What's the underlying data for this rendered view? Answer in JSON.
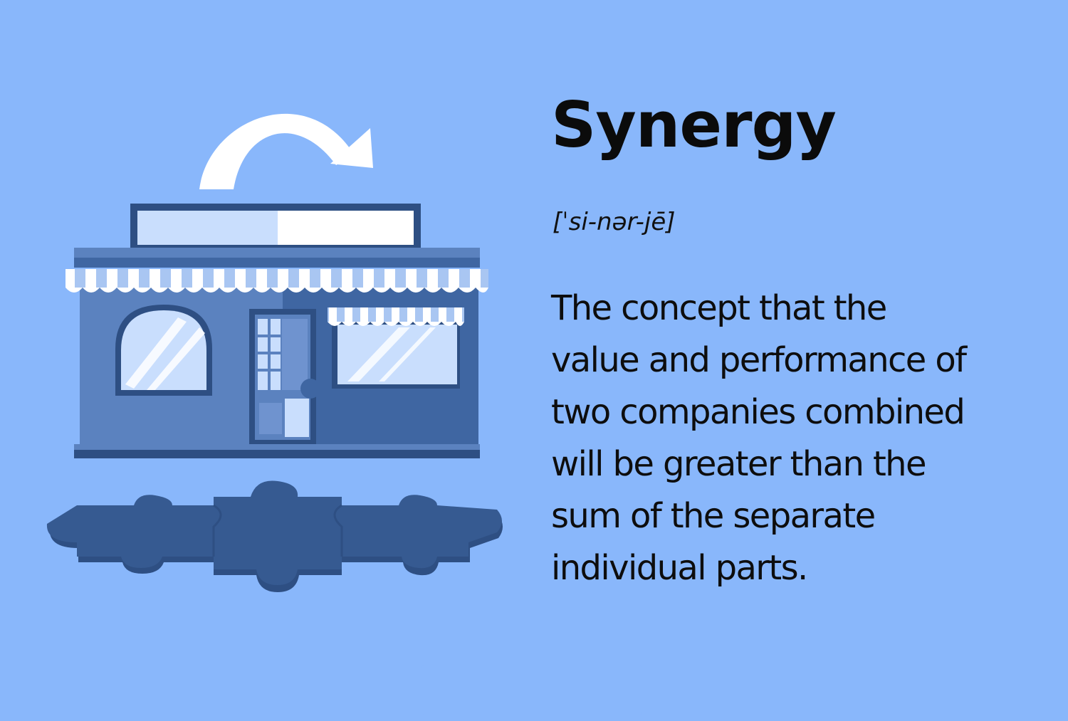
{
  "colors": {
    "background": "#89b7fb",
    "store_dark": "#2e4f83",
    "store_mid": "#3f66a2",
    "store_light": "#5b82bf",
    "glass": "#c9defd",
    "white": "#ffffff",
    "puzzle": "#365a91",
    "text": "#0b0b0b"
  },
  "icons": {
    "arrow": "curved-arrow-icon",
    "store": "storefront-icon",
    "puzzle": "puzzle-pieces-icon"
  },
  "term": "Synergy",
  "pronunciation": "[ˈsi-nər-jē]",
  "definition_lines": [
    "The concept that the",
    "value and performance of",
    "two companies combined",
    "will be greater than the",
    "sum of the separate",
    "individual parts."
  ]
}
